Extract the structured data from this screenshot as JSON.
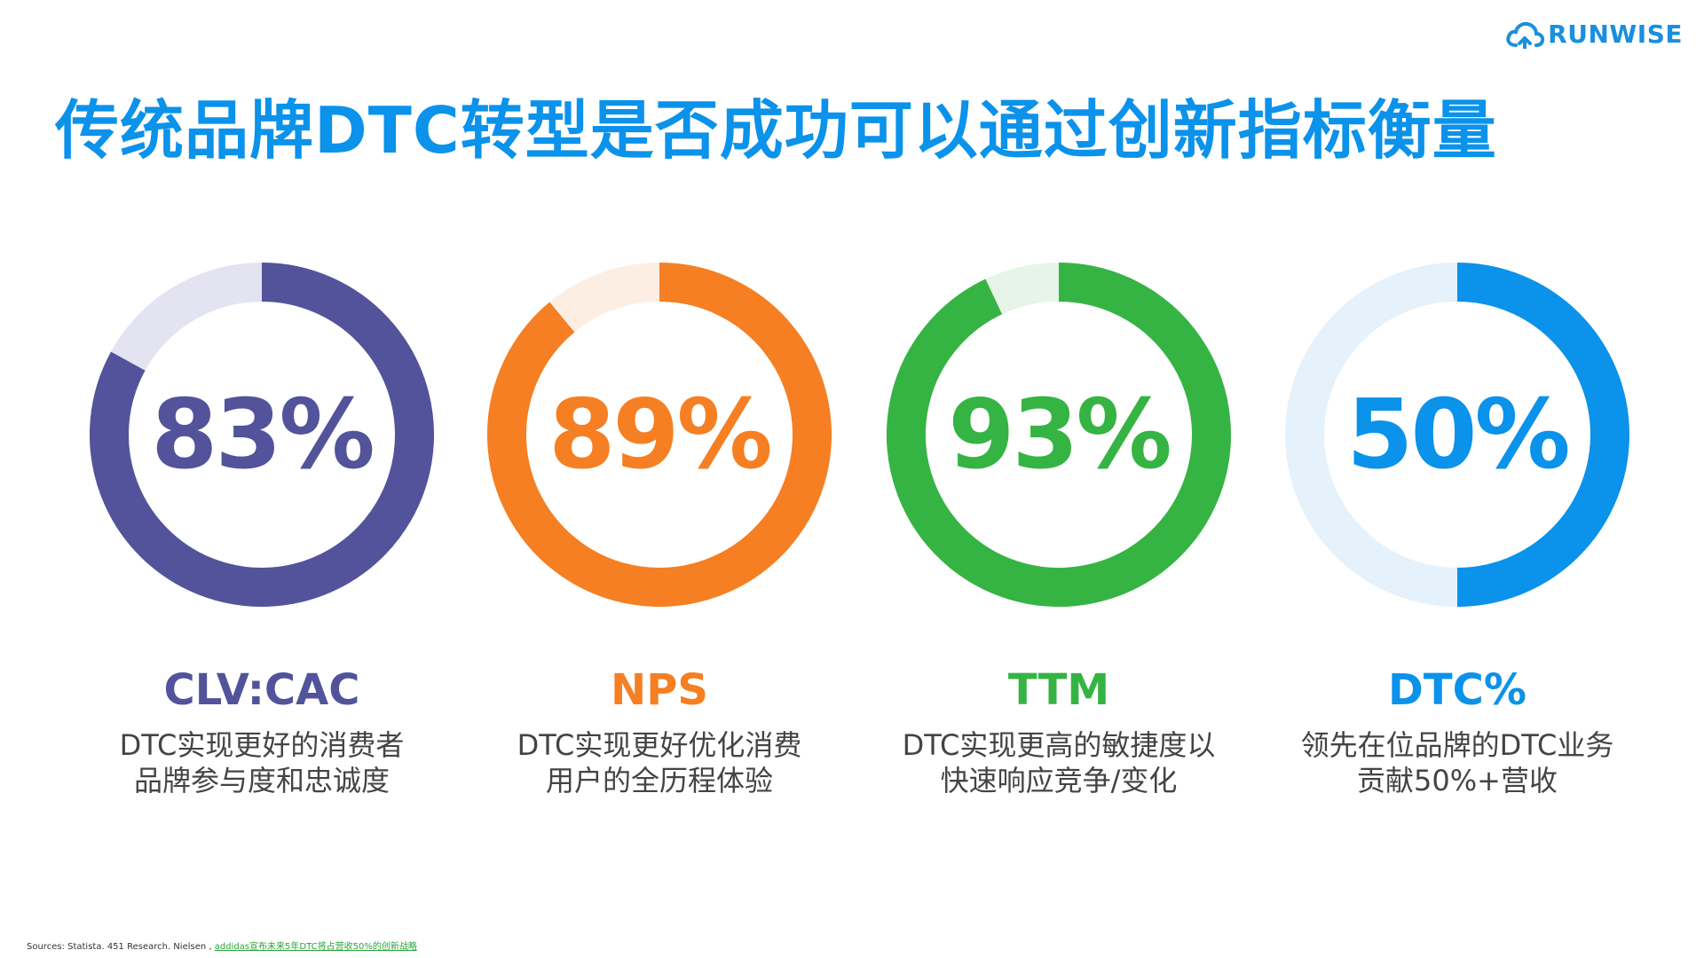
{
  "title": "传统品牌DTC转型是否成功可以通过创新指标衡量",
  "logo": {
    "text": "RUNWISE",
    "icon": "cloud-logo-icon",
    "color": "#1a8fe0"
  },
  "chart_data": {
    "type": "pie",
    "style": "donut-gauge",
    "items": [
      {
        "value": 83,
        "value_label": "83%",
        "metric": "CLV:CAC",
        "desc_line1": "DTC实现更好的消费者",
        "desc_line2": "品牌参与度和忠诚度",
        "color": "#52539a",
        "track_color": "#e4e3f1"
      },
      {
        "value": 89,
        "value_label": "89%",
        "metric": "NPS",
        "desc_line1": "DTC实现更好优化消费",
        "desc_line2": "用户的全历程体验",
        "color": "#f57f22",
        "track_color": "#fdeee4"
      },
      {
        "value": 93,
        "value_label": "93%",
        "metric": "TTM",
        "desc_line1": "DTC实现更高的敏捷度以",
        "desc_line2": "快速响应竞争/变化",
        "color": "#35b444",
        "track_color": "#e6f5e7"
      },
      {
        "value": 50,
        "value_label": "50%",
        "metric": "DTC%",
        "desc_line1": "领先在位品牌的DTC业务",
        "desc_line2": "贡献50%+营收",
        "color": "#0b92ea",
        "track_color": "#e5f1fb"
      }
    ]
  },
  "sources": {
    "prefix": "Sources: Statista. 451 Research. Nielsen ,",
    "link_text": "addidas宣布未来5年DTC将占营收50%的创新战略"
  }
}
